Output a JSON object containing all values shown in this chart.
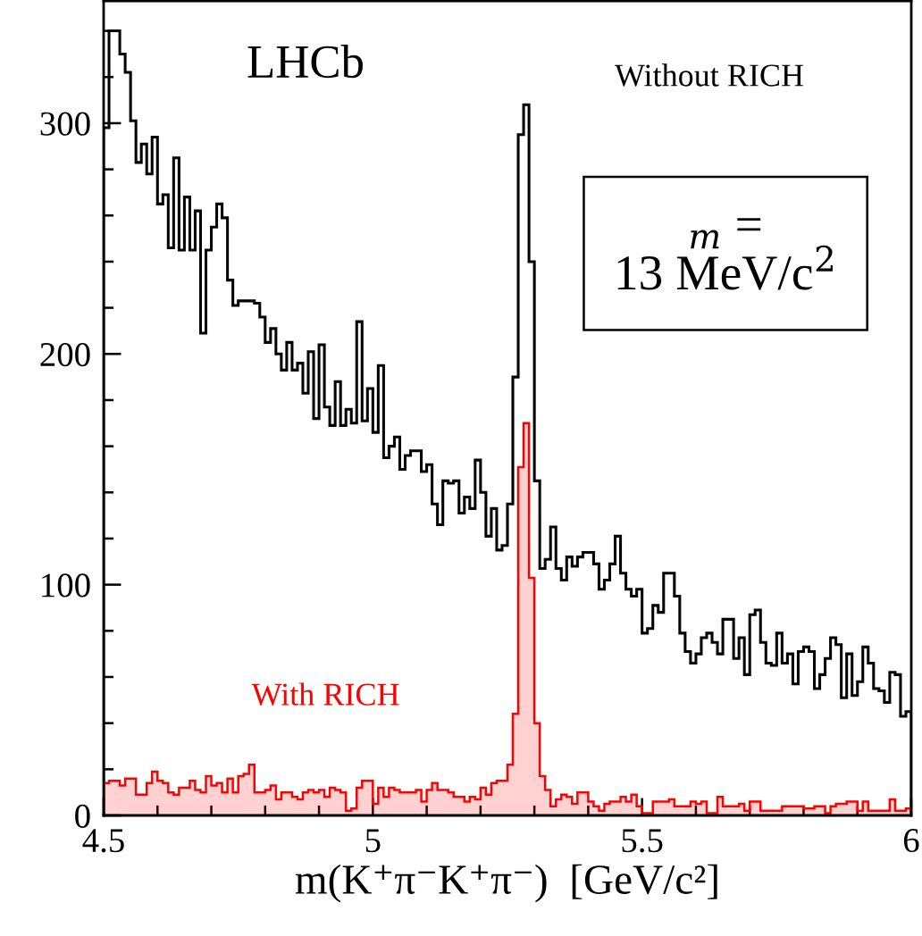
{
  "chart_data": {
    "type": "histogram",
    "xlabel": "m(K⁺π⁻K⁺π⁻)  [GeV/c²]",
    "annotations": [
      "LHCb",
      "$_{m}$ =\n13 MeV/c$^{2}$"
    ],
    "bins": [
      4.5,
      4.51,
      4.52,
      4.53,
      4.54,
      4.55,
      4.56,
      4.57,
      4.58,
      4.59,
      4.6,
      4.61,
      4.62,
      4.63,
      4.64,
      4.65,
      4.66,
      4.67,
      4.68,
      4.69,
      4.7,
      4.71,
      4.72,
      4.73,
      4.74,
      4.75,
      4.76,
      4.77,
      4.78,
      4.79,
      4.8,
      4.81,
      4.82,
      4.83,
      4.84,
      4.85,
      4.86,
      4.87,
      4.88,
      4.89,
      4.9,
      4.91,
      4.92,
      4.93,
      4.94,
      4.95,
      4.96,
      4.97,
      4.98,
      4.99,
      5.0,
      5.01,
      5.02,
      5.03,
      5.04,
      5.05,
      5.06,
      5.07,
      5.08,
      5.09,
      5.1,
      5.11,
      5.12,
      5.13,
      5.14,
      5.15,
      5.16,
      5.17,
      5.18,
      5.19,
      5.2,
      5.21,
      5.22,
      5.23,
      5.24,
      5.25,
      5.26,
      5.27,
      5.28,
      5.29,
      5.3,
      5.31,
      5.32,
      5.33,
      5.34,
      5.35,
      5.36,
      5.37,
      5.38,
      5.39,
      5.4,
      5.41,
      5.42,
      5.43,
      5.44,
      5.45,
      5.46,
      5.47,
      5.48,
      5.49,
      5.5,
      5.51,
      5.52,
      5.53,
      5.54,
      5.55,
      5.56,
      5.57,
      5.58,
      5.59,
      5.6,
      5.61,
      5.62,
      5.63,
      5.64,
      5.65,
      5.66,
      5.67,
      5.68,
      5.69,
      5.7,
      5.71,
      5.72,
      5.73,
      5.74,
      5.75,
      5.76,
      5.77,
      5.78,
      5.79,
      5.8,
      5.81,
      5.82,
      5.83,
      5.84,
      5.85,
      5.86,
      5.87,
      5.88,
      5.89,
      5.9,
      5.91,
      5.92,
      5.93,
      5.94,
      5.95,
      5.96,
      5.97,
      5.98,
      5.99,
      6.0
    ],
    "series": [
      {
        "name": "Without RICH",
        "type": "histogram",
        "color": "#000000",
        "values": [
          298,
          340,
          340,
          330,
          322,
          301,
          283,
          291,
          278,
          294,
          265,
          269,
          246,
          285,
          245,
          268,
          245,
          262,
          209,
          245,
          255,
          265,
          259,
          232,
          221,
          223,
          223,
          223,
          222,
          216,
          205,
          211,
          200,
          193,
          205,
          193,
          196,
          183,
          201,
          172,
          204,
          177,
          169,
          188,
          169,
          176,
          170,
          214,
          171,
          185,
          166,
          195,
          155,
          160,
          164,
          150,
          156,
          158,
          158,
          149,
          152,
          135,
          126,
          145,
          144,
          145,
          131,
          138,
          133,
          154,
          140,
          121,
          133,
          115,
          117,
          135,
          190,
          295,
          308,
          240,
          145,
          107,
          111,
          125,
          107,
          102,
          112,
          108,
          112,
          114,
          114,
          109,
          98,
          102,
          109,
          121,
          105,
          98,
          95,
          98,
          79,
          81,
          91,
          88,
          105,
          105,
          95,
          79,
          71,
          66,
          70,
          77,
          79,
          75,
          70,
          85,
          85,
          68,
          77,
          61,
          87,
          89,
          75,
          66,
          65,
          79,
          66,
          70,
          57,
          71,
          73,
          71,
          55,
          61,
          68,
          77,
          74,
          51,
          70,
          52,
          58,
          73,
          66,
          55,
          54,
          49,
          62,
          61,
          43,
          45
        ]
      },
      {
        "name": "With RICH",
        "type": "histogram",
        "color": "#ff0000",
        "values": [
          14,
          15,
          15,
          13,
          16,
          16,
          9,
          9,
          14,
          19,
          15,
          14,
          10,
          9,
          12,
          12,
          15,
          11,
          10,
          17,
          13,
          14,
          10,
          16,
          10,
          17,
          18,
          22,
          10,
          10,
          11,
          13,
          7,
          10,
          10,
          8,
          7,
          10,
          11,
          10,
          11,
          8,
          12,
          11,
          10,
          2,
          3,
          12,
          15,
          15,
          5,
          12,
          8,
          12,
          11,
          10,
          10,
          10,
          11,
          6,
          11,
          14,
          11,
          11,
          10,
          8,
          8,
          6,
          8,
          7,
          12,
          9,
          14,
          15,
          15,
          22,
          44,
          151,
          170,
          103,
          40,
          17,
          11,
          4,
          7,
          9,
          8,
          5,
          10,
          10,
          6,
          4,
          2,
          5,
          6,
          6,
          8,
          6,
          9,
          4,
          1,
          1,
          6,
          6,
          6,
          7,
          4,
          4,
          4,
          6,
          5,
          6,
          1,
          1,
          8,
          4,
          4,
          4,
          5,
          2,
          6,
          6,
          2,
          2,
          2,
          2,
          4,
          4,
          4,
          4,
          3,
          3,
          4,
          4,
          1,
          4,
          5,
          5,
          6,
          6,
          2,
          6,
          2,
          2,
          2,
          2,
          7,
          2,
          2,
          3
        ]
      }
    ],
    "xlim": [
      4.5,
      6.0
    ],
    "ylim": [
      0,
      353
    ],
    "xticks": [
      4.5,
      {
        "value": 4.6,
        "label": null
      },
      {
        "value": 4.7,
        "label": null
      },
      {
        "value": 4.8,
        "label": null
      },
      {
        "value": 4.9,
        "label": null
      },
      5,
      {
        "value": 5.1,
        "label": null
      },
      {
        "value": 5.2,
        "label": null
      },
      {
        "value": 5.3,
        "label": null
      },
      {
        "value": 5.4,
        "label": null
      },
      5.5,
      {
        "value": 5.6,
        "label": null
      },
      {
        "value": 5.7,
        "label": null
      },
      {
        "value": 5.8,
        "label": null
      },
      {
        "value": 5.9,
        "label": null
      },
      6
    ],
    "yticks": [
      0,
      {
        "value": 20,
        "label": null
      },
      {
        "value": 40,
        "label": null
      },
      {
        "value": 60,
        "label": null
      },
      {
        "value": 80,
        "label": null
      },
      100,
      {
        "value": 120,
        "label": null
      },
      {
        "value": 140,
        "label": null
      },
      {
        "value": 160,
        "label": null
      },
      {
        "value": 180,
        "label": null
      },
      200,
      {
        "value": 220,
        "label": null
      },
      {
        "value": 240,
        "label": null
      },
      {
        "value": 260,
        "label": null
      },
      {
        "value": 280,
        "label": null
      },
      300,
      {
        "value": 320,
        "label": null
      },
      {
        "value": 340,
        "label": null
      }
    ],
    "grid": false,
    "legend": false
  }
}
